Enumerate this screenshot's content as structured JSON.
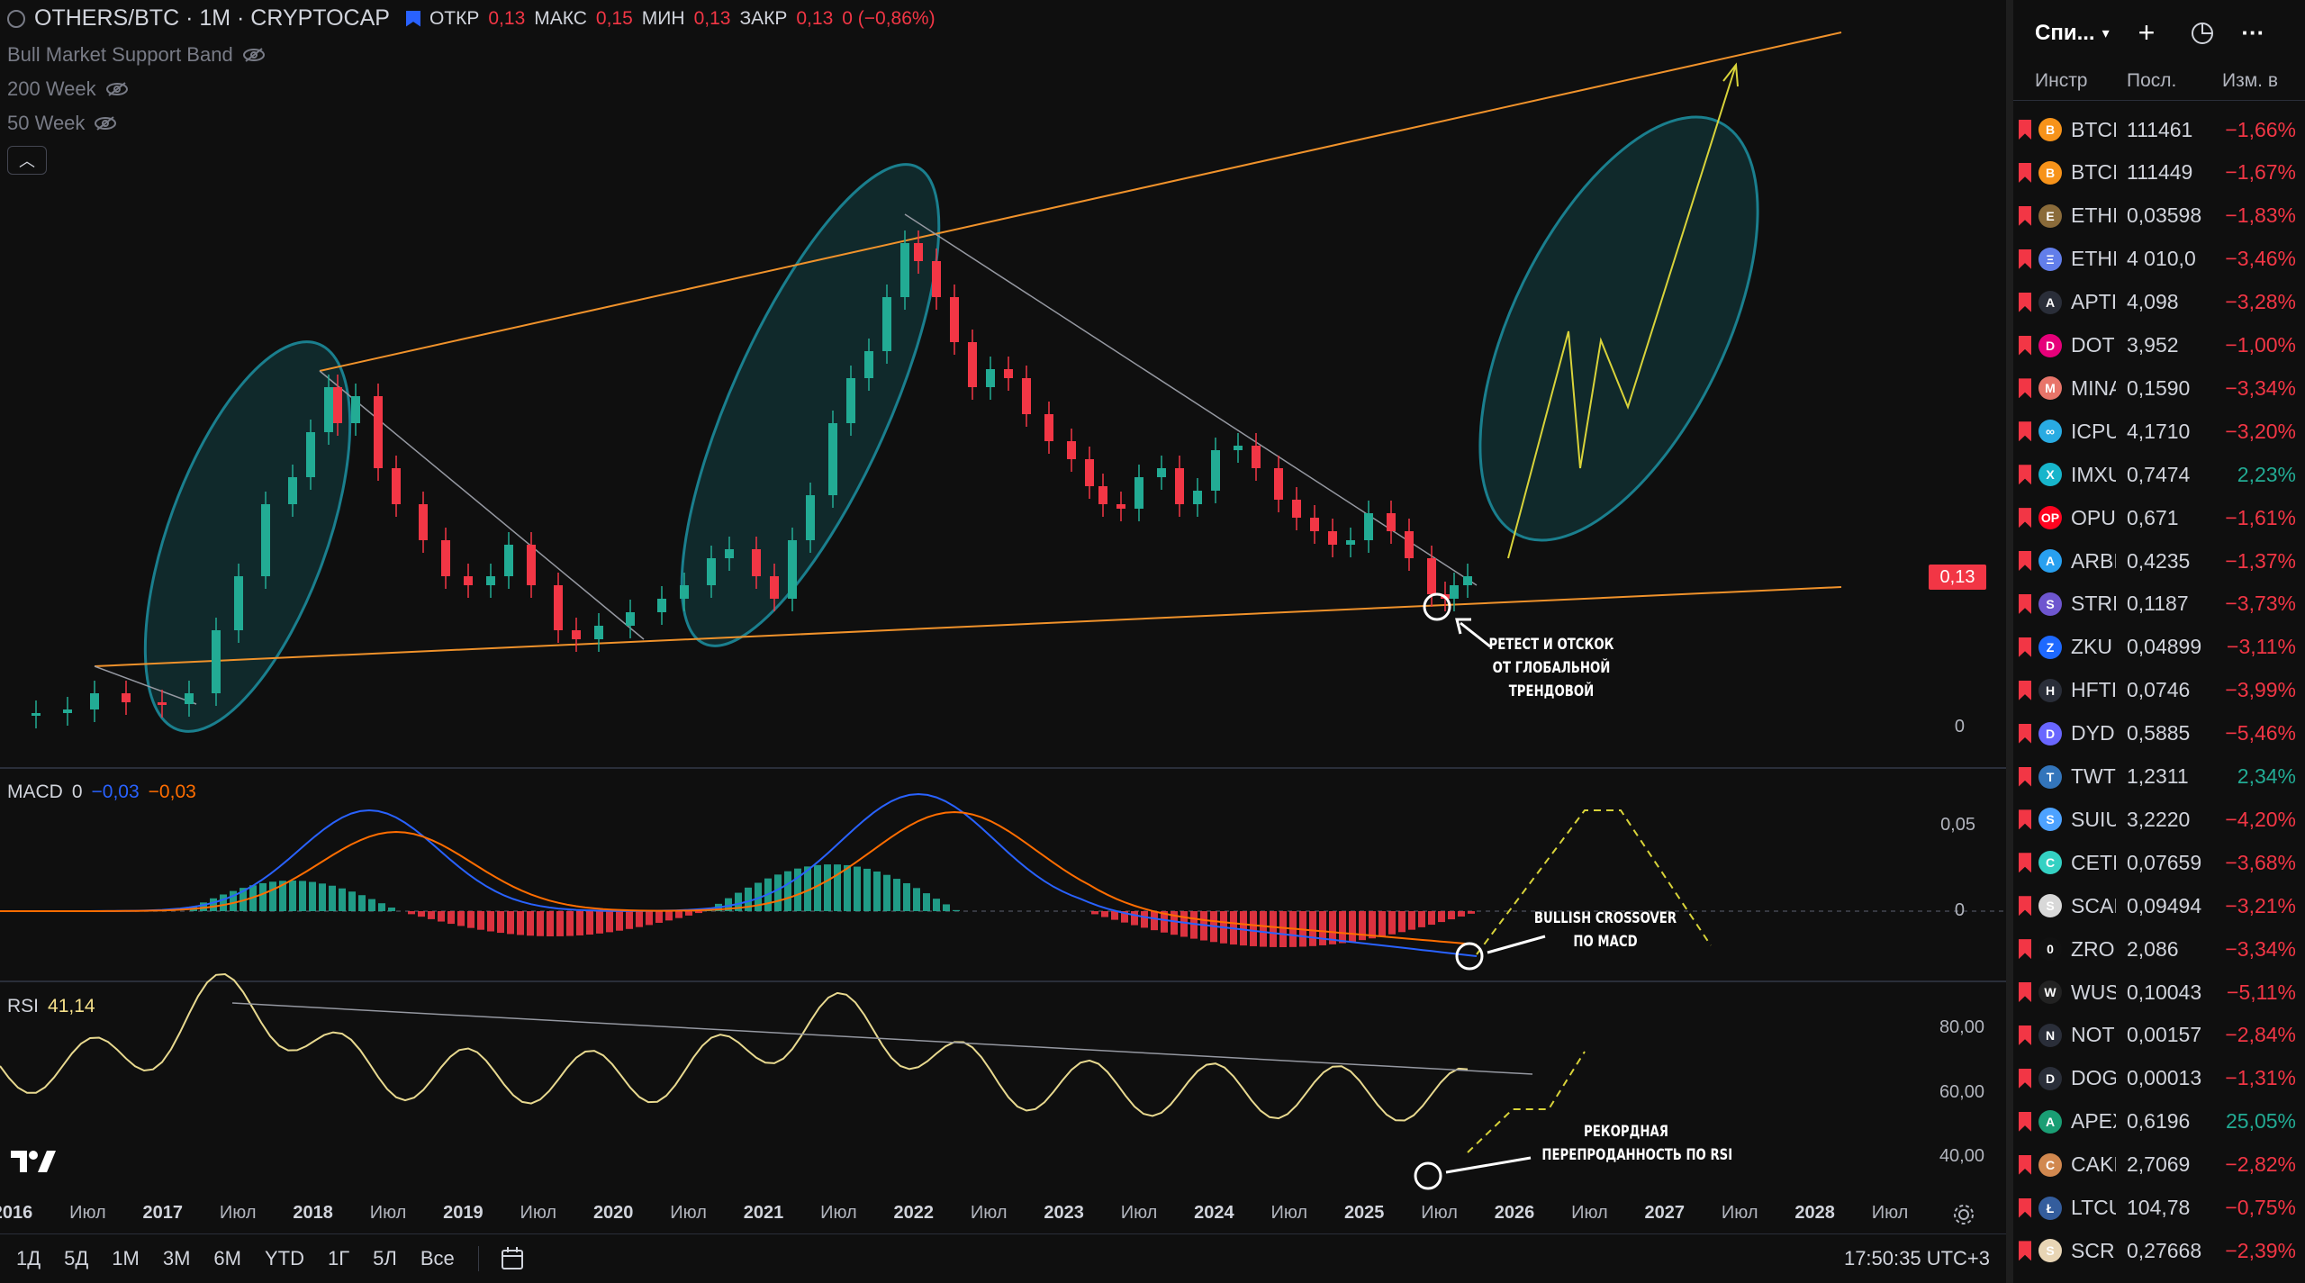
{
  "header": {
    "symbol": "OTHERS/BTC · 1M · CRYPTOCAP",
    "open_label": "ОТКР",
    "open": "0,13",
    "high_label": "МАКС",
    "high": "0,15",
    "low_label": "МИН",
    "low": "0,13",
    "close_label": "ЗАКР",
    "close": "0,13",
    "change": "0 (−0,86%)"
  },
  "indicators": [
    "Bull Market Support Band",
    "200 Week",
    "50 Week"
  ],
  "price_axis": {
    "last_price": "0,13",
    "zero": "0"
  },
  "macd": {
    "label": "MACD",
    "v1": "0",
    "v2": "−0,03",
    "v3": "−0,03",
    "axis_top": "0,05",
    "axis_zero": "0"
  },
  "rsi": {
    "label": "RSI",
    "value": "41,14",
    "axis": [
      "80,00",
      "60,00",
      "40,00"
    ]
  },
  "time_axis": [
    "2016",
    "Июл",
    "2017",
    "Июл",
    "2018",
    "Июл",
    "2019",
    "Июл",
    "2020",
    "Июл",
    "2021",
    "Июл",
    "2022",
    "Июл",
    "2023",
    "Июл",
    "2024",
    "Июл",
    "2025",
    "Июл",
    "2026",
    "Июл",
    "2027",
    "Июл",
    "2028",
    "Июл"
  ],
  "annotations": {
    "retest": [
      "РЕТЕСТ И ОТСКОК",
      "ОТ ГЛОБАЛЬНОЙ",
      "ТРЕНДОВОЙ"
    ],
    "macd": [
      "BULLISH CROSSOVER",
      "ПО MACD"
    ],
    "rsi": [
      "РЕКОРДНАЯ",
      "ПЕРЕПРОДАННОСТЬ ПО RSI"
    ]
  },
  "bottom_bar": {
    "ranges": [
      "1Д",
      "5Д",
      "1М",
      "3М",
      "6М",
      "YTD",
      "1Г",
      "5Л",
      "Все"
    ],
    "clock": "17:50:35 UTC+3"
  },
  "watchlist": {
    "title": "Спи...",
    "columns": [
      "Инстр",
      "Посл.",
      "Изм. в"
    ],
    "rows": [
      {
        "sym": "BTCI",
        "last": "111461",
        "chg": "−1,66%",
        "dir": "neg",
        "color": "#f7931a",
        "glyph": "B"
      },
      {
        "sym": "BTCI",
        "last": "111449",
        "chg": "−1,67%",
        "dir": "neg",
        "color": "#f7931a",
        "glyph": "B"
      },
      {
        "sym": "ETHI",
        "last": "0,03598",
        "chg": "−1,83%",
        "dir": "neg",
        "color": "#8a6b3a",
        "glyph": "E"
      },
      {
        "sym": "ETHI",
        "last": "4 010,0",
        "chg": "−3,46%",
        "dir": "neg",
        "color": "#627eea",
        "glyph": "Ξ"
      },
      {
        "sym": "APTI",
        "last": "4,098",
        "chg": "−3,28%",
        "dir": "neg",
        "color": "#2a2e39",
        "glyph": "A"
      },
      {
        "sym": "DOT",
        "last": "3,952",
        "chg": "−1,00%",
        "dir": "neg",
        "color": "#e6007a",
        "glyph": "D"
      },
      {
        "sym": "MINA",
        "last": "0,1590",
        "chg": "−3,34%",
        "dir": "neg",
        "color": "#e8756a",
        "glyph": "M"
      },
      {
        "sym": "ICPU",
        "last": "4,1710",
        "chg": "−3,20%",
        "dir": "neg",
        "color": "#29abe2",
        "glyph": "∞"
      },
      {
        "sym": "IMXU",
        "last": "0,7474",
        "chg": "2,23%",
        "dir": "pos",
        "color": "#17b5cb",
        "glyph": "X"
      },
      {
        "sym": "OPU",
        "last": "0,671",
        "chg": "−1,61%",
        "dir": "neg",
        "color": "#ff0420",
        "glyph": "OP"
      },
      {
        "sym": "ARBI",
        "last": "0,4235",
        "chg": "−1,37%",
        "dir": "neg",
        "color": "#28a0f0",
        "glyph": "A"
      },
      {
        "sym": "STRI",
        "last": "0,1187",
        "chg": "−3,73%",
        "dir": "neg",
        "color": "#6e56cf",
        "glyph": "S"
      },
      {
        "sym": "ZKU",
        "last": "0,04899",
        "chg": "−3,11%",
        "dir": "neg",
        "color": "#1e69ff",
        "glyph": "Z"
      },
      {
        "sym": "HFTI",
        "last": "0,0746",
        "chg": "−3,99%",
        "dir": "neg",
        "color": "#2a2e39",
        "glyph": "H"
      },
      {
        "sym": "DYD",
        "last": "0,5885",
        "chg": "−5,46%",
        "dir": "neg",
        "color": "#6966ff",
        "glyph": "D"
      },
      {
        "sym": "TWT",
        "last": "1,2311",
        "chg": "2,34%",
        "dir": "pos",
        "color": "#3375bb",
        "glyph": "T"
      },
      {
        "sym": "SUIU",
        "last": "3,2220",
        "chg": "−4,20%",
        "dir": "neg",
        "color": "#4da2ff",
        "glyph": "S"
      },
      {
        "sym": "CETI",
        "last": "0,07659",
        "chg": "−3,68%",
        "dir": "neg",
        "color": "#34d1c3",
        "glyph": "C"
      },
      {
        "sym": "SCAI",
        "last": "0,09494",
        "chg": "−3,21%",
        "dir": "neg",
        "color": "#d8d8d8",
        "glyph": "S"
      },
      {
        "sym": "ZRO",
        "last": "2,086",
        "chg": "−3,34%",
        "dir": "neg",
        "color": "#111111",
        "glyph": "0"
      },
      {
        "sym": "WUS",
        "last": "0,10043",
        "chg": "−5,11%",
        "dir": "neg",
        "color": "#222222",
        "glyph": "W"
      },
      {
        "sym": "NOT",
        "last": "0,00157",
        "chg": "−2,84%",
        "dir": "neg",
        "color": "#2a2e39",
        "glyph": "N"
      },
      {
        "sym": "DOG",
        "last": "0,00013",
        "chg": "−1,31%",
        "dir": "neg",
        "color": "#2a2e39",
        "glyph": "D"
      },
      {
        "sym": "APEX",
        "last": "0,6196",
        "chg": "25,05%",
        "dir": "pos",
        "color": "#1a9e74",
        "glyph": "A"
      },
      {
        "sym": "CAKI",
        "last": "2,7069",
        "chg": "−2,82%",
        "dir": "neg",
        "color": "#d1884f",
        "glyph": "C"
      },
      {
        "sym": "LTCU",
        "last": "104,78",
        "chg": "−0,75%",
        "dir": "neg",
        "color": "#345d9d",
        "glyph": "Ł"
      },
      {
        "sym": "SCRI",
        "last": "0,27668",
        "chg": "−2,39%",
        "dir": "neg",
        "color": "#e8d5b5",
        "glyph": "S"
      }
    ]
  }
}
